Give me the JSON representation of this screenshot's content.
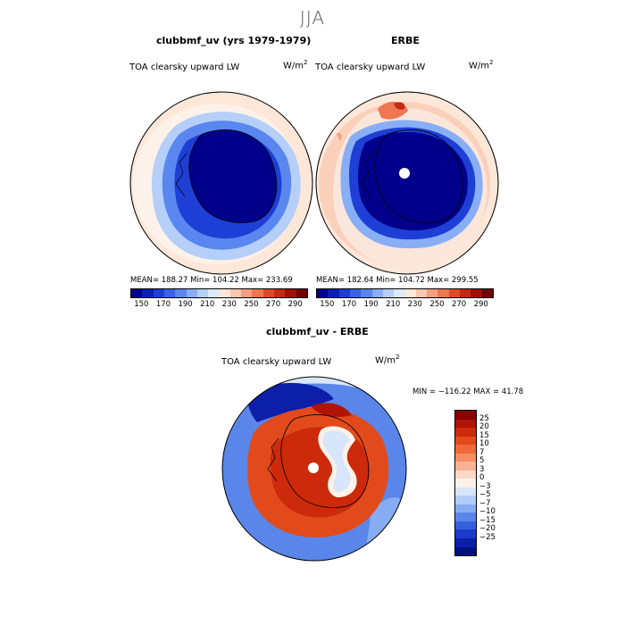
{
  "season": "JJA",
  "panels": [
    {
      "title": "clubbmf_uv (yrs 1979-1979)",
      "variable": "TOA clearsky upward LW",
      "units_base": "W/m",
      "units_exp": "2",
      "stats": "MEAN= 188.27   Min= 104.22   Max= 233.69"
    },
    {
      "title": "ERBE",
      "variable": "TOA clearsky upward LW",
      "units_base": "W/m",
      "units_exp": "2",
      "stats": "MEAN= 182.64   Min= 104.72   Max= 299.55"
    }
  ],
  "field_colorbar": {
    "tick_labels": [
      "150",
      "170",
      "190",
      "210",
      "230",
      "250",
      "270",
      "290"
    ],
    "colors": [
      "#00008b",
      "#0a1fb5",
      "#1e3fd6",
      "#3a62e6",
      "#5a86ef",
      "#88aef5",
      "#b5cff9",
      "#dde9fc",
      "#fde7d8",
      "#fbc7ae",
      "#f6a07f",
      "#ee7650",
      "#de4a28",
      "#c42a12",
      "#9e1105",
      "#720000"
    ]
  },
  "difference": {
    "title": "clubbmf_uv - ERBE",
    "variable": "TOA clearsky upward LW",
    "units_base": "W/m",
    "units_exp": "2",
    "minmax": "MIN = −116.22  MAX =  41.78",
    "colorbar_labels": [
      "25",
      "20",
      "15",
      "10",
      "7",
      "5",
      "3",
      "0",
      "−3",
      "−5",
      "−7",
      "−10",
      "−15",
      "−20",
      "−25"
    ],
    "colors": [
      "#8b0000",
      "#b01405",
      "#cc2a0a",
      "#e24a1c",
      "#ef6a38",
      "#f58d62",
      "#f9b394",
      "#fcd8c6",
      "#fdf2e8",
      "#d8e6fc",
      "#b3cdf8",
      "#86acf2",
      "#5a86ea",
      "#3560dd",
      "#1a3acc",
      "#0b1fa8",
      "#000f80"
    ]
  }
}
